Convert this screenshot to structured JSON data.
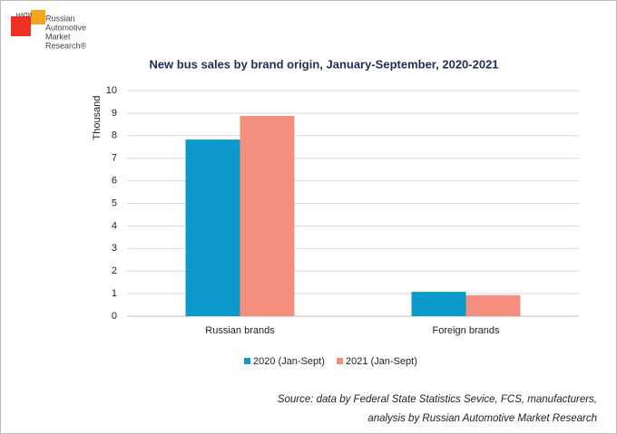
{
  "logo": {
    "mark": "НАПИ",
    "lines": [
      "Russian",
      "Automotive",
      "Market",
      "Research®"
    ]
  },
  "chart_data": {
    "type": "bar",
    "title": "New bus sales by brand origin, January-September, 2020-2021",
    "ylabel": "Thousand",
    "categories": [
      "Russian brands",
      "Foreign brands"
    ],
    "series": [
      {
        "name": "2020 (Jan-Sept)",
        "color": "#0b9acb",
        "values": [
          7.83,
          1.08
        ]
      },
      {
        "name": "2021 (Jan-Sept)",
        "color": "#f48f7f",
        "values": [
          8.88,
          0.93
        ]
      }
    ],
    "ylim": [
      0,
      10
    ],
    "yticks": [
      0,
      1,
      2,
      3,
      4,
      5,
      6,
      7,
      8,
      9,
      10
    ],
    "grid": true,
    "legend": "bottom",
    "source": [
      "Source: data by Federal State Statistics Sevice, FCS, manufacturers,",
      "analysis by Russian Automotive Market Research"
    ]
  }
}
